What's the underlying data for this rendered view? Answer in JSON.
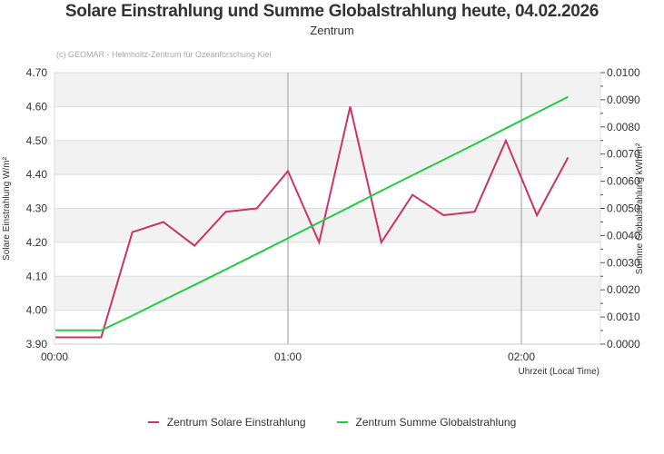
{
  "header": {
    "title": "Solare Einstrahlung und Summe Globalstrahlung heute, 04.02.2026",
    "subtitle": "Zentrum",
    "credit": "(c) GEOMAR - Helmholtz-Zentrum für Ozeanforschung Kiel"
  },
  "legend": [
    {
      "label": "Zentrum Solare Einstrahlung",
      "color": "#cc3366"
    },
    {
      "label": "Zentrum Summe Globalstrahlung",
      "color": "#22cc44"
    }
  ],
  "chart_data": {
    "type": "line",
    "title": "Solare Einstrahlung und Summe Globalstrahlung heute, 04.02.2026",
    "subtitle": "Zentrum",
    "xlabel": "Uhrzeit (Local Time)",
    "ylabel": "Solare Einstrahlung W/m²",
    "y2label": "Summe Globalstrahlung kWh/m²",
    "x_unit": "minutes after 00:00",
    "x_ticks": [
      "00:00",
      "01:00",
      "02:00"
    ],
    "x_tick_minutes": [
      0,
      60,
      120
    ],
    "xlim": [
      0,
      140
    ],
    "ylim": [
      3.9,
      4.7
    ],
    "y_ticks": [
      "3.90",
      "4.00",
      "4.10",
      "4.20",
      "4.30",
      "4.40",
      "4.50",
      "4.60",
      "4.70"
    ],
    "y2lim": [
      0,
      0.01
    ],
    "y2_ticks": [
      "0.0000",
      "0.0010",
      "0.0020",
      "0.0030",
      "0.0040",
      "0.0050",
      "0.0060",
      "0.0070",
      "0.0080",
      "0.0090",
      "0.0100"
    ],
    "grid": true,
    "banded_background": true,
    "legend_position": "bottom",
    "x": [
      0,
      12,
      20,
      28,
      36,
      44,
      52,
      60,
      68,
      76,
      84,
      92,
      100,
      108,
      116,
      124,
      132
    ],
    "series": [
      {
        "name": "Zentrum Solare Einstrahlung",
        "axis": "left",
        "color": "#cc3366",
        "values": [
          3.92,
          3.92,
          4.23,
          4.26,
          4.19,
          4.29,
          4.3,
          4.41,
          4.2,
          4.6,
          4.2,
          4.34,
          4.28,
          4.29,
          4.5,
          4.28,
          4.45
        ]
      },
      {
        "name": "Zentrum Summe Globalstrahlung",
        "axis": "right",
        "color": "#22cc44",
        "values": [
          0.00051,
          0.00051,
          0.00105,
          0.00162,
          0.00218,
          0.00275,
          0.00332,
          0.0039,
          0.00448,
          0.00506,
          0.00565,
          0.00622,
          0.00679,
          0.00736,
          0.00795,
          0.00853,
          0.00911
        ]
      }
    ]
  }
}
